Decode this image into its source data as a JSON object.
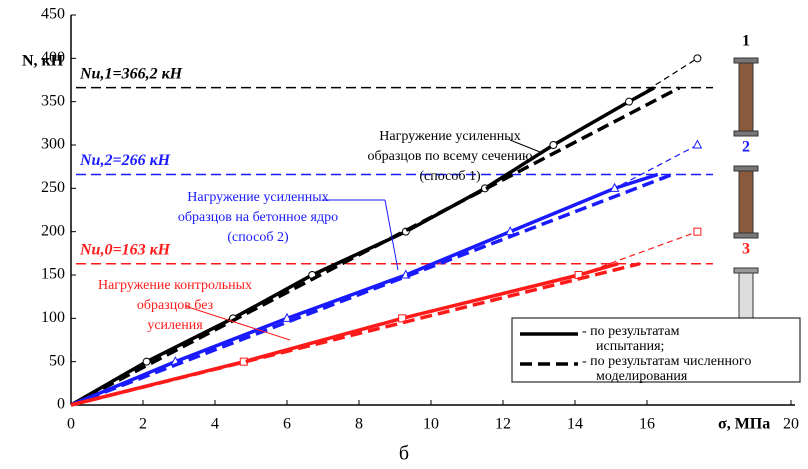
{
  "chart_data": {
    "type": "line",
    "xlabel": "σ, МПа",
    "ylabel": "N, кН",
    "caption": "б",
    "xlim": [
      0,
      20
    ],
    "ylim": [
      0,
      450
    ],
    "xticks": [
      0,
      2,
      4,
      6,
      8,
      10,
      12,
      14,
      16,
      20
    ],
    "yticks": [
      0,
      50,
      100,
      150,
      200,
      250,
      300,
      350,
      400,
      450
    ],
    "series": [
      {
        "color": "#000000",
        "style": "solid",
        "marker": "none",
        "x": [
          0,
          2.1,
          4.5,
          6.7,
          9.3,
          11.5,
          13.4,
          15.5,
          16.2
        ],
        "values": [
          0,
          50,
          100,
          150,
          200,
          250,
          300,
          350,
          366
        ]
      },
      {
        "color": "#000000",
        "style": "thin-dashed",
        "marker": "circle",
        "x": [
          2.1,
          4.5,
          6.7,
          9.3,
          11.5,
          13.4,
          15.5,
          17.4
        ],
        "values": [
          50,
          100,
          150,
          200,
          250,
          300,
          350,
          400
        ]
      },
      {
        "color": "#000000",
        "style": "dashed",
        "marker": "none",
        "x": [
          0,
          16.9
        ],
        "values": [
          0,
          366
        ]
      },
      {
        "color": "#1a1aff",
        "style": "solid",
        "marker": "none",
        "x": [
          0,
          2.9,
          6,
          9.3,
          12.2,
          15.1,
          16.3
        ],
        "values": [
          0,
          50,
          100,
          150,
          200,
          250,
          266
        ]
      },
      {
        "color": "#1a1aff",
        "style": "thin-dashed",
        "marker": "triangle",
        "x": [
          2.9,
          6,
          9.3,
          12.2,
          15.1,
          17.4
        ],
        "values": [
          50,
          100,
          150,
          200,
          250,
          300
        ]
      },
      {
        "color": "#1a1aff",
        "style": "dashed",
        "marker": "none",
        "x": [
          0,
          16.7
        ],
        "values": [
          0,
          266
        ]
      },
      {
        "color": "#ff1a1a",
        "style": "solid",
        "marker": "none",
        "x": [
          0,
          4.8,
          9.2,
          14.1,
          15.2
        ],
        "values": [
          0,
          50,
          100,
          150,
          163
        ]
      },
      {
        "color": "#ff1a1a",
        "style": "thin-dashed",
        "marker": "square",
        "x": [
          4.8,
          9.2,
          14.1,
          17.4
        ],
        "values": [
          50,
          100,
          150,
          200
        ]
      },
      {
        "color": "#ff1a1a",
        "style": "dashed",
        "marker": "none",
        "x": [
          0,
          15.8
        ],
        "values": [
          0,
          163
        ]
      }
    ],
    "hlines": [
      {
        "value": 366.2,
        "color": "#000000",
        "label": "Nu,1=366,2 кН"
      },
      {
        "value": 266,
        "color": "#1a1aff",
        "label": "Nu,2=266 кН"
      },
      {
        "value": 163,
        "color": "#ff1a1a",
        "label": "Nu,0=163 кН"
      }
    ],
    "annotations": [
      {
        "color": "#000000",
        "lines": [
          "Нагружение усиленных",
          "образцов по всему сечению",
          "(способ 1)"
        ]
      },
      {
        "color": "#1a1aff",
        "lines": [
          "Нагружение усиленных",
          "образцов на бетонное ядро",
          "(способ 2)"
        ]
      },
      {
        "color": "#ff1a1a",
        "lines": [
          "Нагружение контрольных",
          "образцов без",
          "усиления"
        ]
      }
    ],
    "legend": [
      {
        "style": "solid",
        "lines": [
          "- по результатам",
          "испытания;"
        ]
      },
      {
        "style": "dashed",
        "lines": [
          "- по результатам численного",
          "моделирования"
        ]
      }
    ],
    "specimens": [
      "1",
      "2",
      "3"
    ]
  }
}
